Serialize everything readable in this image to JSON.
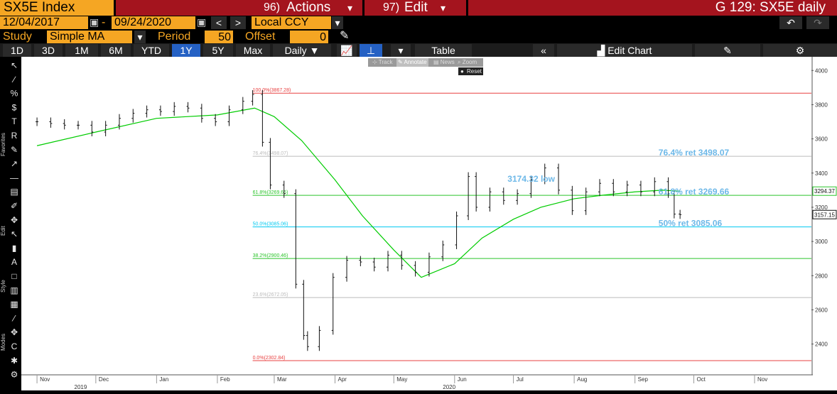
{
  "header": {
    "ticker": "SX5E Index",
    "actions_num": "96)",
    "actions_label": "Actions",
    "edit_num": "97)",
    "edit_label": "Edit",
    "page_title": "G 129: SX5E daily"
  },
  "date_range": {
    "start": "12/04/2017",
    "dash": "-",
    "end": "09/24/2020",
    "currency": "Local CCY"
  },
  "study": {
    "label": "Study",
    "value": "Simple MA",
    "period_label": "Period",
    "period_value": "50",
    "offset_label": "Offset",
    "offset_value": "0"
  },
  "periods": [
    "1D",
    "3D",
    "1M",
    "6M",
    "YTD",
    "1Y",
    "5Y",
    "Max"
  ],
  "active_period": "1Y",
  "frequency": "Daily",
  "table_label": "Table",
  "edit_chart_label": "Edit Chart",
  "mini_toolbar": {
    "track": "Track",
    "annotate": "Annotate",
    "news": "News",
    "zoom": "Zoom",
    "reset": "Reset"
  },
  "side_labels": {
    "favorites": "Favorites",
    "edit": "Edit",
    "style": "Style",
    "modes": "Modes"
  },
  "chart_data": {
    "type": "line",
    "subtype": "ohlc_bar",
    "x_ticks": [
      "Nov",
      "Dec",
      "Jan",
      "Feb",
      "Mar",
      "Apr",
      "May",
      "Jun",
      "Jul",
      "Aug",
      "Sep",
      "Oct",
      "Nov"
    ],
    "year_labels": [
      "2019",
      "2020"
    ],
    "ylim": [
      2220,
      4080
    ],
    "y_ticks": [
      2400,
      2600,
      2800,
      3000,
      3200,
      3400,
      3600,
      3800,
      4000
    ],
    "last_price": "3157.15",
    "ma_last": "3294.37",
    "series": [
      {
        "name": "",
        "color": "#111111",
        "x": [
          "2019-11-01",
          "2019-11-08",
          "2019-11-15",
          "2019-11-22",
          "2019-11-29",
          "2019-12-06",
          "2019-12-13",
          "2019-12-20",
          "2019-12-27",
          "2020-01-03",
          "2020-01-10",
          "2020-01-17",
          "2020-01-24",
          "2020-01-31",
          "2020-02-07",
          "2020-02-14",
          "2020-02-19",
          "2020-02-24",
          "2020-02-28",
          "2020-03-06",
          "2020-03-12",
          "2020-03-16",
          "2020-03-18",
          "2020-03-24",
          "2020-03-31",
          "2020-04-07",
          "2020-04-14",
          "2020-04-21",
          "2020-04-28",
          "2020-05-05",
          "2020-05-12",
          "2020-05-19",
          "2020-05-26",
          "2020-06-02",
          "2020-06-08",
          "2020-06-12",
          "2020-06-19",
          "2020-06-26",
          "2020-07-03",
          "2020-07-10",
          "2020-07-17",
          "2020-07-24",
          "2020-07-31",
          "2020-08-07",
          "2020-08-14",
          "2020-08-21",
          "2020-08-28",
          "2020-09-04",
          "2020-09-11",
          "2020-09-18",
          "2020-09-21",
          "2020-09-24"
        ],
        "values": [
          3700,
          3690,
          3680,
          3680,
          3640,
          3680,
          3720,
          3750,
          3770,
          3760,
          3790,
          3780,
          3720,
          3700,
          3770,
          3820,
          3860,
          3580,
          3330,
          3280,
          2750,
          2450,
          2385,
          2480,
          2790,
          2890,
          2880,
          2850,
          2920,
          2860,
          2820,
          2910,
          2980,
          3150,
          3380,
          3200,
          3290,
          3240,
          3280,
          3360,
          3430,
          3300,
          3180,
          3290,
          3340,
          3290,
          3330,
          3290,
          3350,
          3280,
          3160,
          3157
        ]
      },
      {
        "name": "",
        "color": "#00cc00",
        "x": [
          "2019-11-01",
          "2019-12-01",
          "2020-01-01",
          "2020-02-01",
          "2020-02-20",
          "2020-03-01",
          "2020-03-15",
          "2020-04-01",
          "2020-04-15",
          "2020-05-01",
          "2020-05-15",
          "2020-06-01",
          "2020-06-15",
          "2020-07-01",
          "2020-07-15",
          "2020-08-01",
          "2020-08-15",
          "2020-09-01",
          "2020-09-15",
          "2020-09-24"
        ],
        "values": [
          3560,
          3640,
          3720,
          3740,
          3780,
          3730,
          3590,
          3360,
          3150,
          2950,
          2790,
          2870,
          3020,
          3130,
          3200,
          3250,
          3270,
          3290,
          3300,
          3294
        ]
      }
    ],
    "fib_levels": [
      {
        "label": "100.0%(3867.28)",
        "value": 3867.28,
        "color": "#e84040"
      },
      {
        "label": "76.4%(3498.07)",
        "value": 3498.07,
        "color": "#bbbbbb"
      },
      {
        "label": "61.8%(3269.66)",
        "value": 3269.66,
        "color": "#2bc42b"
      },
      {
        "label": "50.0%(3085.06)",
        "value": 3085.06,
        "color": "#00c8f0"
      },
      {
        "label": "38.2%(2900.46)",
        "value": 2900.46,
        "color": "#2bc42b"
      },
      {
        "label": "23.6%(2672.05)",
        "value": 2672.05,
        "color": "#bbbbbb"
      },
      {
        "label": "0.0%(2302.84)",
        "value": 2302.84,
        "color": "#e84040"
      }
    ],
    "annotations": [
      {
        "text": "76.4% ret 3498.07",
        "value": 3498.07
      },
      {
        "text": "61.8% ret 3269.66",
        "value": 3269.66
      },
      {
        "text": "50% ret 3085.06",
        "value": 3085.06
      },
      {
        "text": "3174.32 low",
        "value": 3174.32
      }
    ],
    "grid": false
  }
}
